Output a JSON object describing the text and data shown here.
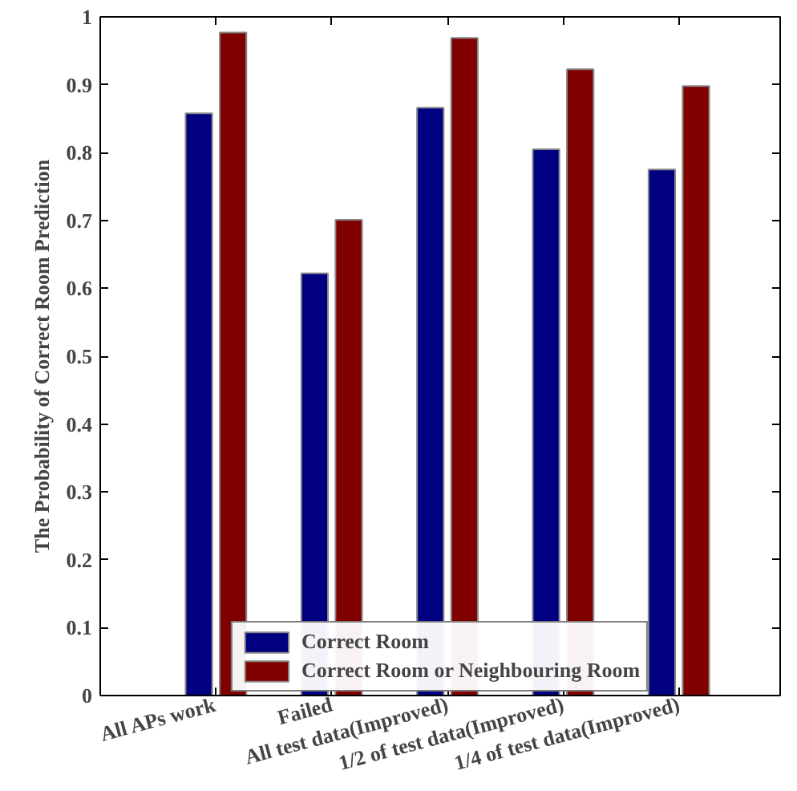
{
  "chart_data": {
    "type": "bar",
    "ylabel": "The Probability of Correct Room Prediction",
    "categories": [
      "All APs work",
      "Failed",
      "All test data(Improved)",
      "1/2 of test data(Improved)",
      "1/4 of test data(Improved)"
    ],
    "series": [
      {
        "name": "Correct Room",
        "color": "#000080",
        "values": [
          0.858,
          0.622,
          0.866,
          0.805,
          0.775
        ]
      },
      {
        "name": "Correct Room or Neighbouring Room",
        "color": "#800000",
        "values": [
          0.977,
          0.701,
          0.969,
          0.923,
          0.898
        ]
      }
    ],
    "ylim": [
      0,
      1
    ],
    "yticks": [
      0,
      0.1,
      0.2,
      0.3,
      0.4,
      0.5,
      0.6,
      0.7,
      0.8,
      0.9,
      1
    ],
    "grid": false,
    "legend": "bottom"
  }
}
